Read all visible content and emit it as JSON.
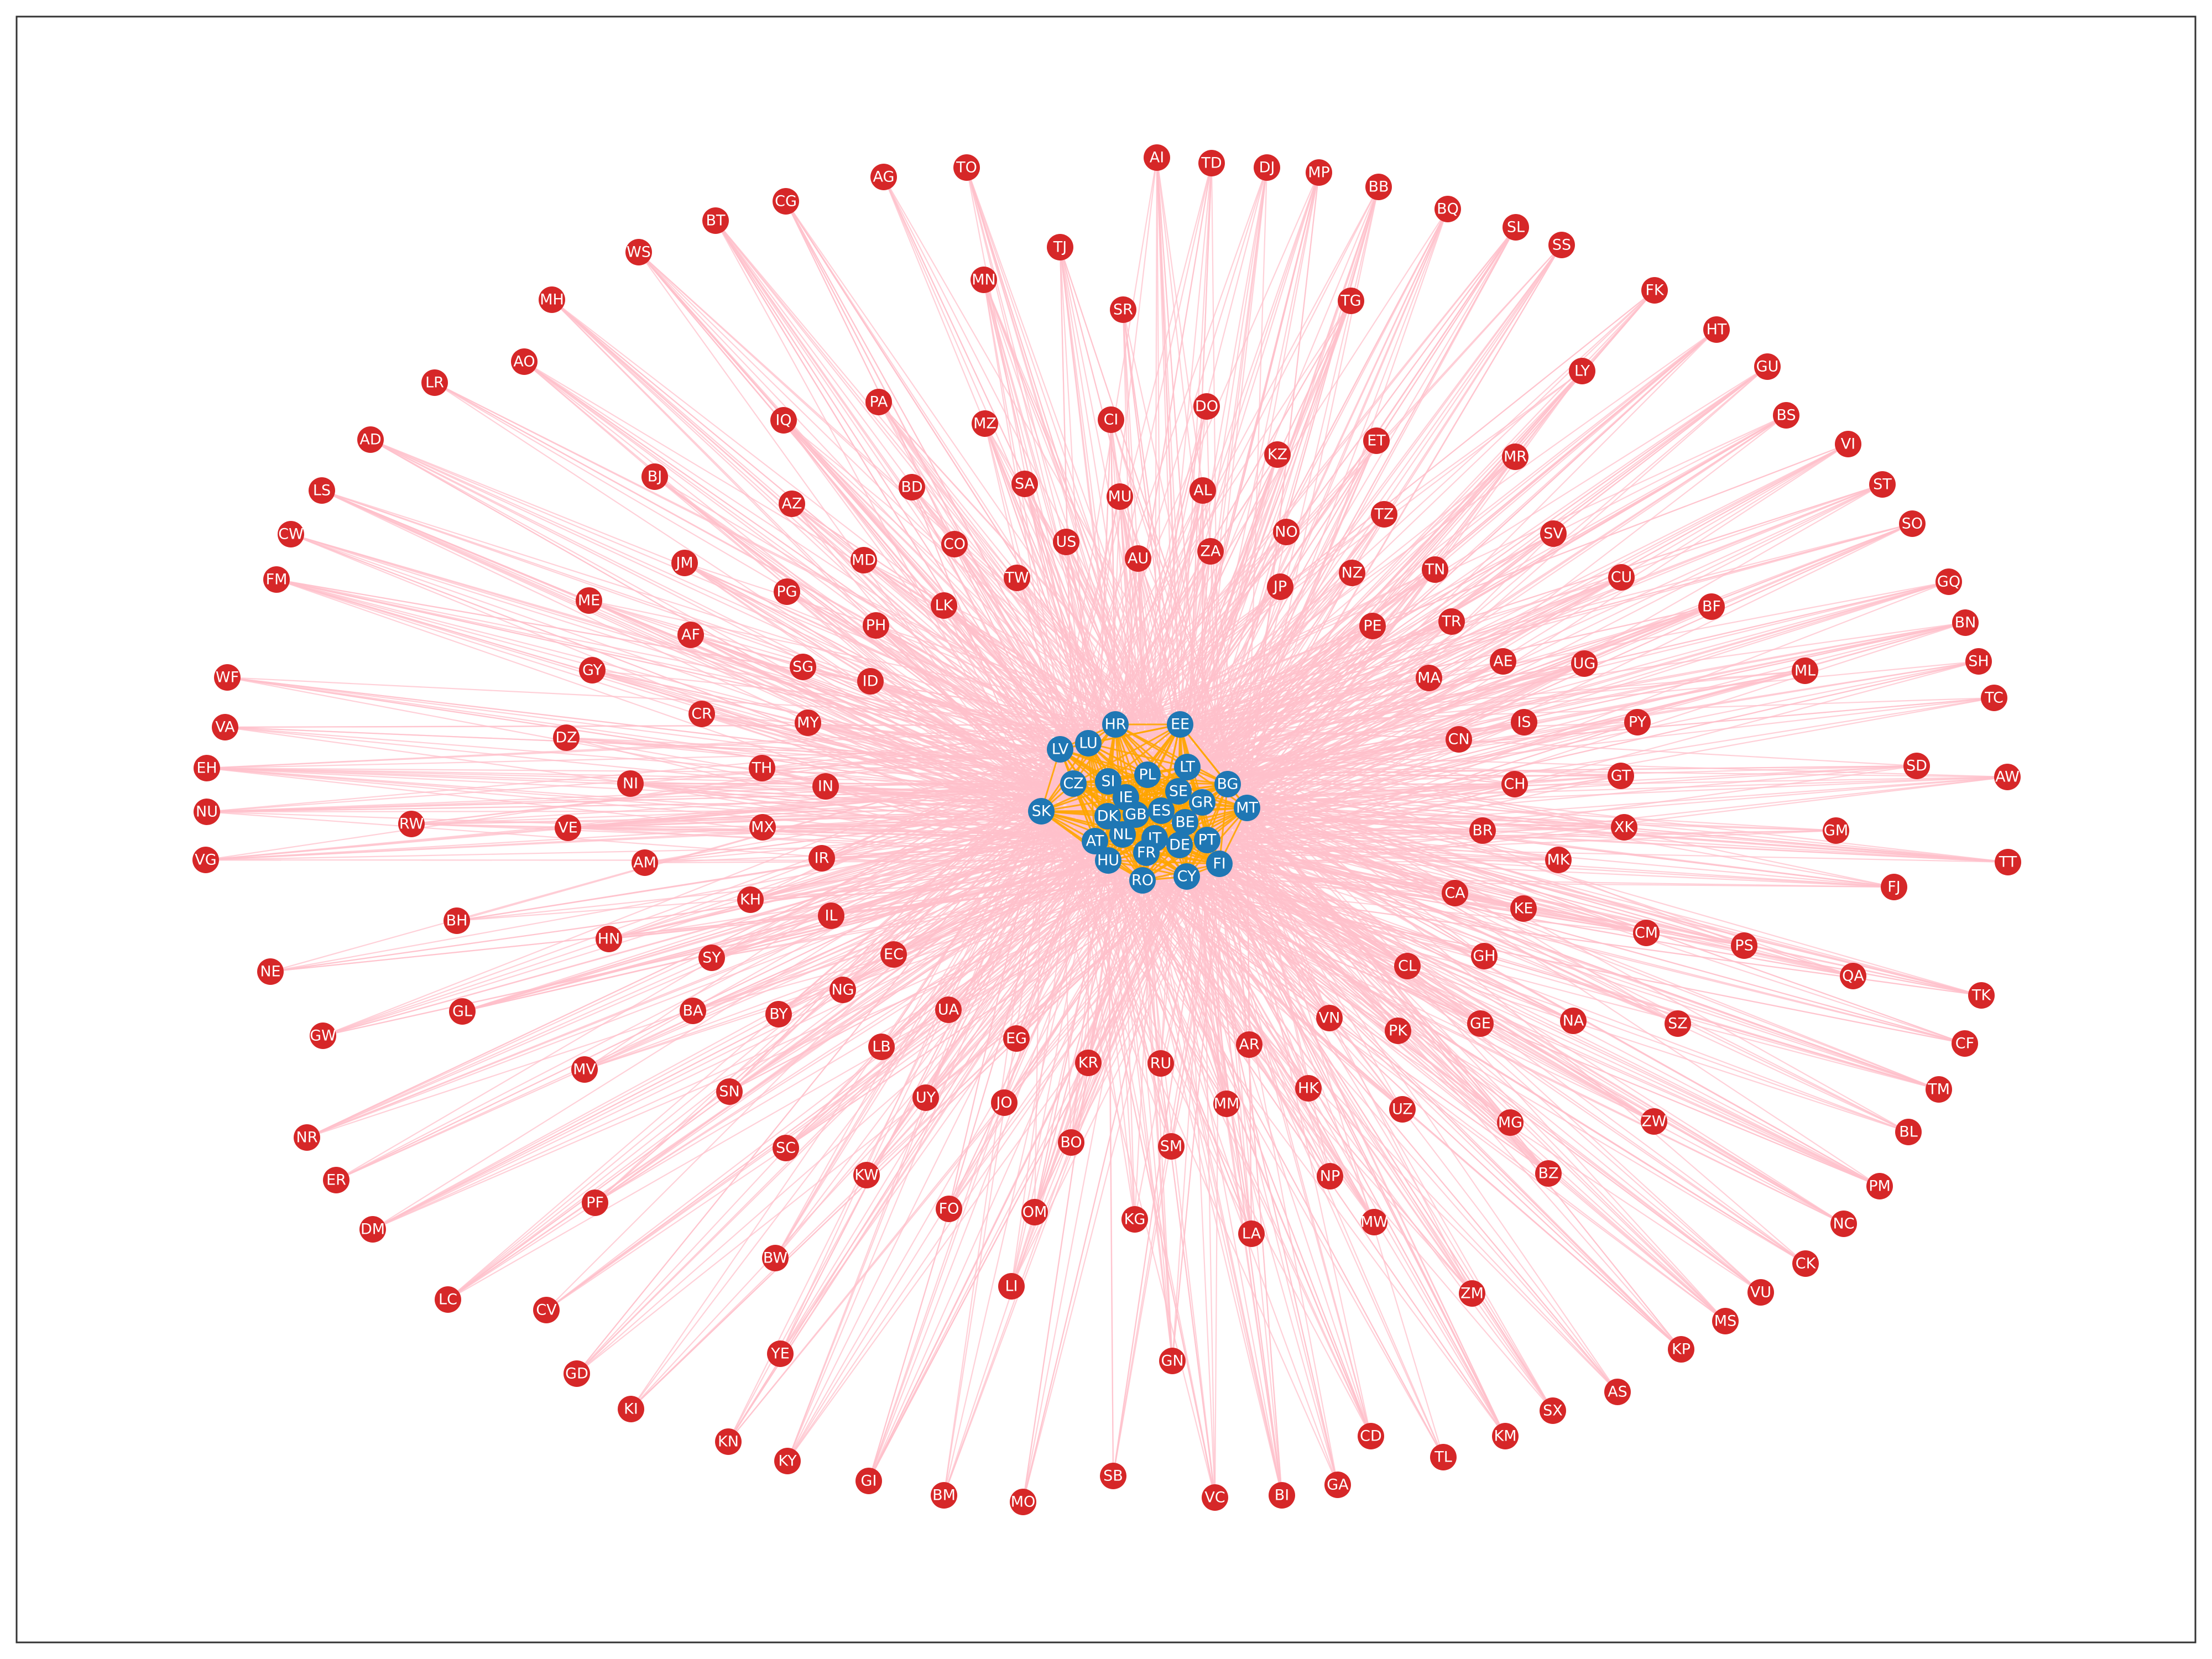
{
  "colors": {
    "background": "#ffffff",
    "frame": "#333333",
    "eu_node": "#1f77b4",
    "non_eu_node": "#d62728",
    "eu_edge": "#ffa500",
    "outward_edge": "#ffc0cb",
    "label": "#ffffff"
  },
  "groups": {
    "eu": [
      "LV",
      "LU",
      "HR",
      "EE",
      "CZ",
      "SI",
      "PL",
      "LT",
      "SK",
      "IE",
      "SE",
      "BG",
      "GR",
      "DK",
      "GB",
      "ES",
      "MT",
      "BE",
      "AT",
      "NL",
      "IT",
      "PT",
      "HU",
      "FR",
      "DE",
      "FI",
      "RO",
      "CY"
    ],
    "non_eu": [
      "AI",
      "TD",
      "DJ",
      "MP",
      "TO",
      "AG",
      "BB",
      "CG",
      "BQ",
      "BT",
      "SL",
      "SS",
      "WS",
      "TJ",
      "MN",
      "SR",
      "TG",
      "FK",
      "MH",
      "HT",
      "GU",
      "LR",
      "AO",
      "PA",
      "IQ",
      "MZ",
      "CI",
      "DO",
      "KZ",
      "ET",
      "LY",
      "BS",
      "AD",
      "MR",
      "VI",
      "BJ",
      "BD",
      "SA",
      "MU",
      "AL",
      "LS",
      "AZ",
      "TZ",
      "ST",
      "US",
      "NO",
      "SO",
      "CW",
      "CO",
      "AU",
      "ZA",
      "SV",
      "JM",
      "MD",
      "TW",
      "NZ",
      "TN",
      "FM",
      "PG",
      "CU",
      "GQ",
      "ME",
      "LK",
      "JP",
      "TR",
      "BF",
      "BN",
      "PH",
      "AF",
      "PE",
      "AE",
      "SH",
      "GY",
      "SG",
      "UG",
      "ML",
      "MA",
      "ID",
      "WF",
      "CR",
      "TC",
      "MY",
      "IS",
      "PY",
      "VA",
      "DZ",
      "CN",
      "TH",
      "EH",
      "SD",
      "AW",
      "NI",
      "IN",
      "CH",
      "GT",
      "NU",
      "RW",
      "VE",
      "MX",
      "BR",
      "XK",
      "GM",
      "VG",
      "AM",
      "IR",
      "MK",
      "TT",
      "FJ",
      "KH",
      "CA",
      "KE",
      "BH",
      "IL",
      "CM",
      "HN",
      "PS",
      "NE",
      "SY",
      "EC",
      "GH",
      "CL",
      "QA",
      "GL",
      "BA",
      "BY",
      "NG",
      "UA",
      "NA",
      "GE",
      "VN",
      "SZ",
      "TK",
      "GW",
      "EG",
      "PK",
      "LB",
      "AR",
      "CF",
      "MV",
      "KR",
      "RU",
      "SN",
      "HK",
      "UY",
      "JO",
      "TM",
      "MM",
      "UZ",
      "MG",
      "ZW",
      "BL",
      "NR",
      "BO",
      "SC",
      "SM",
      "ER",
      "KW",
      "BZ",
      "NP",
      "PM",
      "FO",
      "OM",
      "DM",
      "PF",
      "KG",
      "MW",
      "LA",
      "NC",
      "BW",
      "CK",
      "LC",
      "ZM",
      "LI",
      "VU",
      "CV",
      "MS",
      "GN",
      "YE",
      "KP",
      "AS",
      "SX",
      "GD",
      "KI",
      "CD",
      "KM",
      "KN",
      "TL",
      "KY",
      "GA",
      "GI",
      "BI",
      "SB",
      "BM",
      "VC",
      "MO"
    ]
  }
}
